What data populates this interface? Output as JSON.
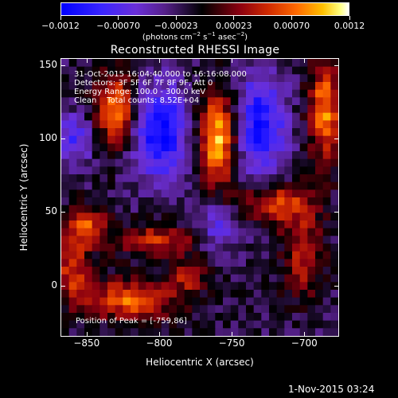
{
  "colorbar": {
    "tick_labels": [
      "−0.0012",
      "−0.00070",
      "−0.00023",
      "0.00023",
      "0.00070",
      "0.0012"
    ],
    "units_html": "(photons cm<sup style=\"font-size:7px\">−2</sup> s<sup style=\"font-size:7px\">−1</sup> asec<sup style=\"font-size:7px\">−2</sup>)",
    "range": [
      -0.0012,
      0.0012
    ]
  },
  "plot": {
    "title": "Reconstructed RHESSI Image",
    "info_lines": [
      "31-Oct-2015 16:04:40.000 to 16:16:08.000",
      "Detectors: 3F 5F 6F 7F 8F 9F, Att 0",
      "Energy Range: 100.0 - 300.0 keV",
      "Clean    Total counts: 8.52E+04"
    ],
    "peak_text": "Position of Peak = [-759,86]"
  },
  "axes": {
    "xlabel": "Heliocentric X (arcsec)",
    "ylabel": "Heliocentric Y (arcsec)",
    "xticks": [
      "−850",
      "−800",
      "−750",
      "−700"
    ],
    "yticks": [
      "150",
      "100",
      "50",
      "0"
    ],
    "xlim": [
      -868,
      -676
    ],
    "ylim": [
      -35,
      155
    ]
  },
  "footer": {
    "date": "1-Nov-2015 03:24"
  },
  "chart_data": {
    "type": "heatmap",
    "title": "Reconstructed RHESSI Image",
    "xlabel": "Heliocentric X (arcsec)",
    "ylabel": "Heliocentric Y (arcsec)",
    "xlim": [
      -868,
      -676
    ],
    "ylim": [
      -35,
      155
    ],
    "color_range": [
      -0.0012,
      0.0012
    ],
    "peak_position": [
      -759,
      86
    ],
    "sources": [
      {
        "x": -830,
        "y": 120,
        "amp": 0.001,
        "sx": 10,
        "sy": 18
      },
      {
        "x": -760,
        "y": 100,
        "amp": 0.0012,
        "sx": 9,
        "sy": 22
      },
      {
        "x": -685,
        "y": 120,
        "amp": 0.001,
        "sx": 8,
        "sy": 25
      },
      {
        "x": -720,
        "y": 55,
        "amp": 0.0008,
        "sx": 18,
        "sy": 10
      },
      {
        "x": -850,
        "y": 40,
        "amp": 0.0008,
        "sx": 10,
        "sy": 10
      },
      {
        "x": -800,
        "y": 30,
        "amp": 0.0007,
        "sx": 20,
        "sy": 8
      },
      {
        "x": -860,
        "y": 10,
        "amp": 0.0007,
        "sx": 8,
        "sy": 15
      },
      {
        "x": -820,
        "y": -10,
        "amp": 0.0009,
        "sx": 22,
        "sy": 10
      },
      {
        "x": -700,
        "y": 20,
        "amp": 0.0006,
        "sx": 10,
        "sy": 20
      },
      {
        "x": -780,
        "y": 5,
        "amp": 0.0005,
        "sx": 10,
        "sy": 8
      },
      {
        "x": -800,
        "y": 105,
        "amp": -0.001,
        "sx": 14,
        "sy": 22
      },
      {
        "x": -730,
        "y": 110,
        "amp": -0.0009,
        "sx": 12,
        "sy": 25
      },
      {
        "x": -860,
        "y": 100,
        "amp": -0.0006,
        "sx": 10,
        "sy": 12
      },
      {
        "x": -760,
        "y": 40,
        "amp": -0.0005,
        "sx": 12,
        "sy": 12
      }
    ]
  }
}
